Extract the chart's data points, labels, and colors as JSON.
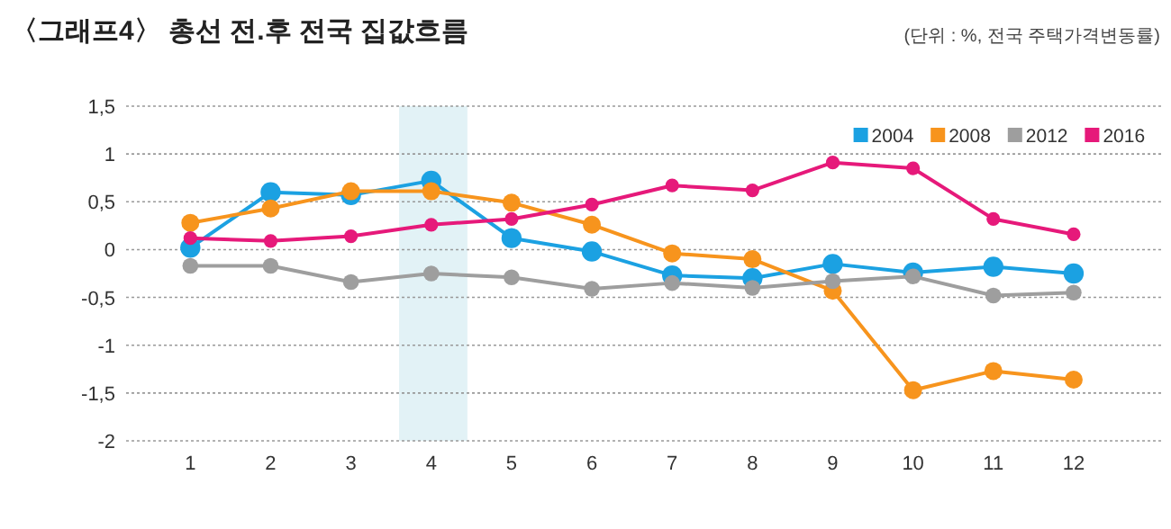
{
  "chart_data": {
    "type": "line",
    "title": "〈그래프4〉 총선 전.후 전국 집값흐름",
    "subtitle": "(단위 : %, 전국 주택가격변동률)",
    "x": [
      1,
      2,
      3,
      4,
      5,
      6,
      7,
      8,
      9,
      10,
      11,
      12
    ],
    "xlim": [
      0.2,
      13.1
    ],
    "xticks": [
      1,
      2,
      3,
      4,
      5,
      6,
      7,
      8,
      9,
      10,
      11,
      12
    ],
    "ylim": [
      -2,
      1.5
    ],
    "yticks": [
      {
        "value": 1.5,
        "label": "1,5"
      },
      1,
      {
        "value": 0.5,
        "label": "0,5"
      },
      0,
      {
        "value": -0.5,
        "label": "-0,5"
      },
      -1,
      {
        "value": -1.5,
        "label": "-1,5"
      },
      -2
    ],
    "grid": "y",
    "legend": "top right",
    "marker": "circle",
    "line_style": "solid",
    "bands": [
      {
        "axis": "x",
        "from": 3.6,
        "to": 4.45,
        "color": "#e2f2f6"
      }
    ],
    "series": [
      {
        "name": "2004",
        "color": "#1ba1e2",
        "values": [
          0.02,
          0.6,
          0.57,
          0.72,
          0.12,
          -0.02,
          -0.27,
          -0.3,
          -0.15,
          -0.24,
          -0.18,
          -0.25
        ]
      },
      {
        "name": "2008",
        "color": "#f7941d",
        "values": [
          0.28,
          0.43,
          0.61,
          0.61,
          0.49,
          0.26,
          -0.04,
          -0.1,
          -0.43,
          -1.47,
          -1.27,
          -1.36
        ]
      },
      {
        "name": "2012",
        "color": "#9e9e9e",
        "values": [
          -0.17,
          -0.17,
          -0.34,
          -0.25,
          -0.29,
          -0.41,
          -0.35,
          -0.4,
          -0.33,
          -0.28,
          -0.48,
          -0.45
        ]
      },
      {
        "name": "2016",
        "color": "#e6197a",
        "values": [
          0.12,
          0.09,
          0.14,
          0.26,
          0.32,
          0.47,
          0.67,
          0.62,
          0.91,
          0.85,
          0.32,
          0.16
        ]
      }
    ]
  }
}
